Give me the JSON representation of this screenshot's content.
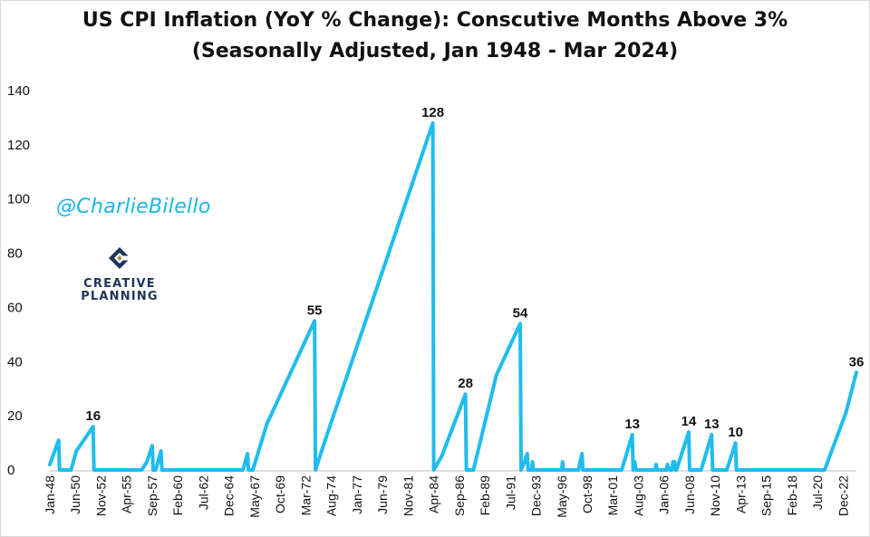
{
  "chart_data": {
    "type": "line",
    "title": "US CPI Inflation (YoY % Change): Conscutive Months Above 3%",
    "subtitle": "(Seasonally Adjusted, Jan 1948 - Mar 2024)",
    "xlabel": "",
    "ylabel": "",
    "ylim": [
      0,
      140
    ],
    "yticks": [
      0,
      20,
      40,
      60,
      80,
      100,
      120,
      140
    ],
    "x_range": [
      "Jan-48",
      "Mar-24"
    ],
    "x_tick_labels": [
      "Jan-48",
      "Jun-50",
      "Nov-52",
      "Apr-55",
      "Sep-57",
      "Feb-60",
      "Jul-62",
      "Dec-64",
      "May-67",
      "Oct-69",
      "Mar-72",
      "Aug-74",
      "Jan-77",
      "Jun-79",
      "Nov-81",
      "Apr-84",
      "Sep-86",
      "Feb-89",
      "Jul-91",
      "Dec-93",
      "May-96",
      "Oct-98",
      "Mar-01",
      "Aug-03",
      "Jan-06",
      "Jun-08",
      "Nov-10",
      "Apr-13",
      "Sep-15",
      "Feb-18",
      "Jul-20",
      "Dec-22"
    ],
    "grid": false,
    "line_color": "#1ebdee",
    "series": [
      {
        "points": [
          [
            "Jan-48",
            2
          ],
          [
            "Nov-48",
            11
          ],
          [
            "Dec-48",
            0
          ],
          [
            "Jan-50",
            0
          ],
          [
            "Jul-50",
            7
          ],
          [
            "Feb-52",
            16
          ],
          [
            "Mar-52",
            0
          ],
          [
            "Sep-56",
            0
          ],
          [
            "Mar-57",
            3
          ],
          [
            "Sep-57",
            9
          ],
          [
            "Oct-57",
            0
          ],
          [
            "Jan-58",
            0
          ],
          [
            "Jul-58",
            7
          ],
          [
            "Aug-58",
            0
          ],
          [
            "Apr-66",
            0
          ],
          [
            "Sep-66",
            6
          ],
          [
            "Oct-66",
            0
          ],
          [
            "Mar-67",
            0
          ],
          [
            "Jul-68",
            17
          ],
          [
            "Jan-73",
            55
          ],
          [
            "Feb-73",
            0
          ],
          [
            "Jan-74",
            11
          ],
          [
            "Mar-84",
            128
          ],
          [
            "Apr-84",
            0
          ],
          [
            "Jan-85",
            5
          ],
          [
            "Apr-87",
            28
          ],
          [
            "May-87",
            0
          ],
          [
            "Jan-88",
            0
          ],
          [
            "Mar-90",
            35
          ],
          [
            "Jun-92",
            54
          ],
          [
            "Jul-92",
            0
          ],
          [
            "Nov-92",
            3
          ],
          [
            "Feb-93",
            6
          ],
          [
            "Mar-93",
            0
          ],
          [
            "Jul-93",
            0
          ],
          [
            "Aug-93",
            3
          ],
          [
            "Sep-93",
            0
          ],
          [
            "May-96",
            0
          ],
          [
            "Jun-96",
            3
          ],
          [
            "Jul-96",
            0
          ],
          [
            "Dec-97",
            0
          ],
          [
            "Apr-98",
            6
          ],
          [
            "May-98",
            0
          ],
          [
            "Jan-02",
            0
          ],
          [
            "Jan-03",
            13
          ],
          [
            "Feb-03",
            0
          ],
          [
            "Apr-03",
            3
          ],
          [
            "May-03",
            0
          ],
          [
            "Mar-05",
            0
          ],
          [
            "Apr-05",
            2
          ],
          [
            "May-05",
            0
          ],
          [
            "Apr-06",
            0
          ],
          [
            "May-06",
            2
          ],
          [
            "Jul-06",
            0
          ],
          [
            "Oct-06",
            0
          ],
          [
            "Nov-06",
            3
          ],
          [
            "Jan-07",
            3
          ],
          [
            "Feb-07",
            0
          ],
          [
            "Mar-07",
            0
          ],
          [
            "May-08",
            14
          ],
          [
            "Jun-08",
            0
          ],
          [
            "Jul-09",
            0
          ],
          [
            "Jul-10",
            13
          ],
          [
            "Aug-10",
            0
          ],
          [
            "Dec-11",
            0
          ],
          [
            "Oct-12",
            10
          ],
          [
            "Nov-12",
            0
          ],
          [
            "Mar-21",
            0
          ],
          [
            "Mar-23",
            21
          ],
          [
            "Mar-24",
            36
          ]
        ]
      }
    ],
    "annotations": [
      {
        "label": "16",
        "x": "Feb-52",
        "y": 16
      },
      {
        "label": "55",
        "x": "Jan-73",
        "y": 55
      },
      {
        "label": "128",
        "x": "Mar-84",
        "y": 128
      },
      {
        "label": "28",
        "x": "Apr-87",
        "y": 28
      },
      {
        "label": "54",
        "x": "Jun-92",
        "y": 54
      },
      {
        "label": "13",
        "x": "Jan-03",
        "y": 13
      },
      {
        "label": "14",
        "x": "May-08",
        "y": 14
      },
      {
        "label": "13",
        "x": "Jul-10",
        "y": 13
      },
      {
        "label": "10",
        "x": "Oct-12",
        "y": 10
      },
      {
        "label": "36",
        "x": "Mar-24",
        "y": 36
      }
    ]
  },
  "watermark": {
    "handle": "@CharlieBilello",
    "brand_line1": "CREATIVE",
    "brand_line2": "PLANNING",
    "brand_mark": "creative-planning-logo-icon",
    "brand_color": "#1d3557",
    "accent_color": "#b08d57"
  }
}
